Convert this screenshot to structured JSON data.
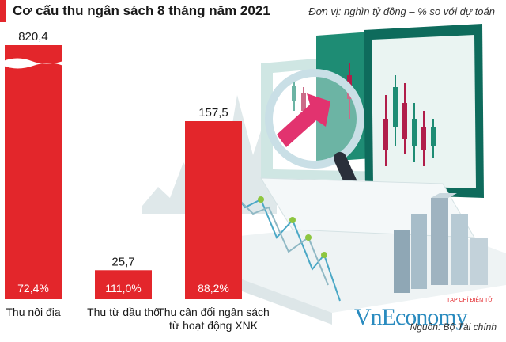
{
  "header": {
    "title": "Cơ cấu thu ngân sách 8 tháng năm 2021",
    "unit": "Đơn vị: nghìn tỷ đồng – % so với dự toán"
  },
  "footer": {
    "source": "Nguồn: Bộ Tài chính",
    "brand": "VnEconomy",
    "brand_tag": "TẠP CHÍ ĐIỆN TỬ"
  },
  "colors": {
    "bar": "#e3262b",
    "accent": "#2a8bbf",
    "text": "#1a1a1a"
  },
  "chart_data": {
    "type": "bar",
    "title": "Cơ cấu thu ngân sách 8 tháng năm 2021",
    "categories": [
      "Thu nội địa",
      "Thu từ dầu thô",
      "Thu cân đối ngân sách từ hoạt động XNK"
    ],
    "category_lines": [
      [
        "Thu nội địa"
      ],
      [
        "Thu từ dầu thô"
      ],
      [
        "Thu cân đối ngân sách",
        "từ hoạt động XNK"
      ]
    ],
    "series": [
      {
        "values": [
          820.4,
          25.7,
          157.5
        ]
      }
    ],
    "value_labels": [
      "820,4",
      "25,7",
      "157,5"
    ],
    "percent_labels": [
      "72,4%",
      "111,0%",
      "88,2%"
    ],
    "axis_break": "first bar truncated (broken axis)",
    "ylim": [
      0,
      220
    ],
    "grid": false,
    "legend": "none"
  }
}
